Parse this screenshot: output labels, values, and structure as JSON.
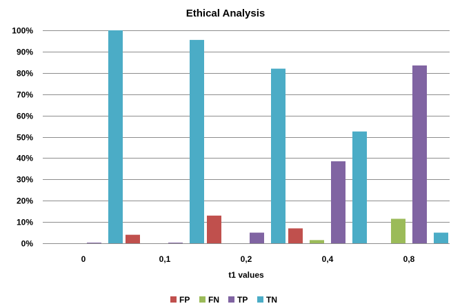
{
  "chart_data": {
    "type": "bar",
    "title": "Ethical Analysis",
    "xlabel": "t1 values",
    "ylabel": "",
    "categories": [
      "0",
      "0,1",
      "0,2",
      "0,4",
      "0,8"
    ],
    "yticks": [
      "0%",
      "10%",
      "20%",
      "30%",
      "40%",
      "50%",
      "60%",
      "70%",
      "80%",
      "90%",
      "100%"
    ],
    "ylim": [
      0,
      100
    ],
    "grid": true,
    "legend_position": "bottom",
    "series": [
      {
        "name": "FP",
        "color": "#C0504D",
        "values": [
          0,
          4,
          13,
          7,
          0
        ]
      },
      {
        "name": "FN",
        "color": "#9BBB59",
        "values": [
          0,
          0,
          0,
          1.5,
          11.5
        ]
      },
      {
        "name": "TP",
        "color": "#8064A2",
        "values": [
          0.3,
          0.3,
          5,
          38.5,
          83.5
        ]
      },
      {
        "name": "TN",
        "color": "#4BACC6",
        "values": [
          100,
          95.5,
          82,
          52.5,
          5
        ]
      }
    ]
  }
}
